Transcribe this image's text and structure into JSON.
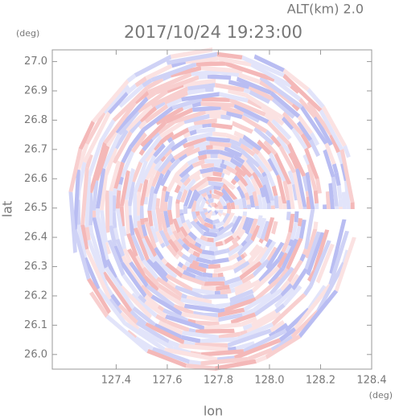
{
  "chart_data": {
    "type": "ppi",
    "title": "2017/10/24 19:23:00",
    "annotation": "ALT(km) 2.0",
    "x_label": "lon",
    "y_label": "lat",
    "x_unit": "(deg)",
    "y_unit": "(deg)",
    "xlim": [
      127.15,
      128.4
    ],
    "ylim": [
      25.95,
      27.04
    ],
    "xticks": [
      127.4,
      127.6,
      127.8,
      {
        "value": 128,
        "label": "128.0"
      },
      128.2,
      128.4
    ],
    "yticks": [
      {
        "value": 26,
        "label": "26.0"
      },
      26.1,
      26.2,
      26.3,
      26.4,
      26.5,
      26.6,
      26.7,
      26.8,
      26.9,
      {
        "value": 27,
        "label": "27.0"
      }
    ]
  }
}
